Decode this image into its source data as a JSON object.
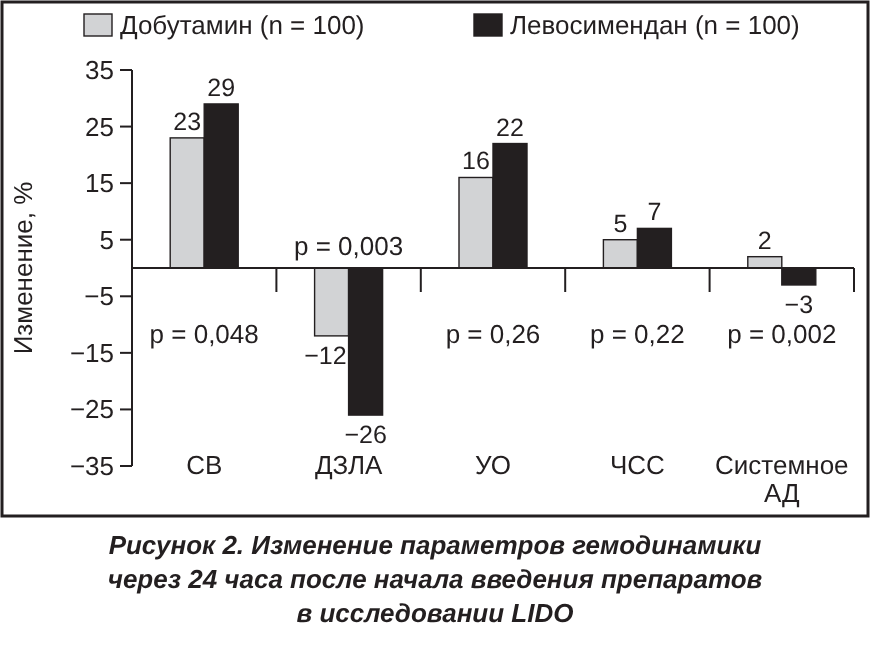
{
  "chart_data": {
    "type": "bar",
    "title": "Рисунок 2. Изменение параметров гемодинамики через 24 часа после начала введения препаратов в исследовании LIDO",
    "ylabel": "Изменение, %",
    "categories": [
      "СВ",
      "ДЗЛА",
      "УО",
      "ЧСС",
      "Системное АД"
    ],
    "series": [
      {
        "name": "Добутамин (n = 100)",
        "color": "#d2d3d5",
        "values": [
          23,
          -12,
          16,
          5,
          2
        ]
      },
      {
        "name": "Левосимендан (n = 100)",
        "color": "#231f20",
        "values": [
          29,
          -26,
          22,
          7,
          -3
        ]
      }
    ],
    "ylim": [
      -35,
      35
    ],
    "yticks": [
      35,
      25,
      15,
      5,
      {
        "value": -5,
        "label": "−5"
      },
      {
        "value": -15,
        "label": "−15"
      },
      {
        "value": -25,
        "label": "−25"
      },
      {
        "value": -35,
        "label": "−35"
      }
    ],
    "data_labels": true,
    "legend": "top",
    "grid": false,
    "annotations": [
      "p = 0,048",
      "p = 0,003",
      "p = 0,26",
      "p = 0,22",
      "p = 0,002"
    ]
  }
}
